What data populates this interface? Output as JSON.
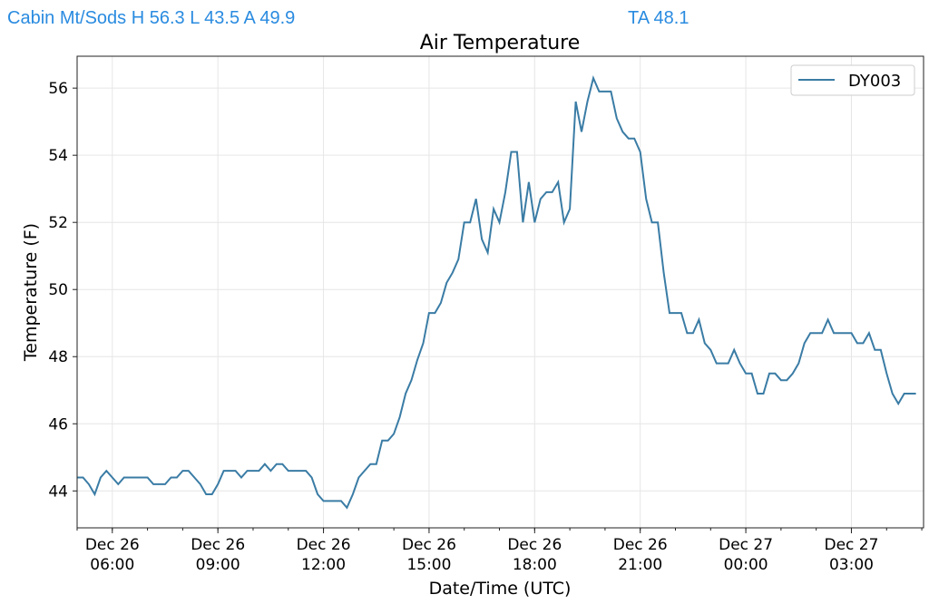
{
  "header": {
    "station": "Cabin Mt/Sods H 56.3 L 43.5 A 49.9",
    "ta": "TA 48.1"
  },
  "chart_data": {
    "type": "line",
    "title": "Air Temperature",
    "xlabel": "Date/Time (UTC)",
    "ylabel": "Temperature (F)",
    "ylim": [
      42.9,
      56.95
    ],
    "xlim_hours": [
      5.0,
      29.05
    ],
    "x_start_hours": 5.0,
    "x_interval_minutes": 10,
    "grid": true,
    "legend": {
      "placement": "top-right",
      "entries": [
        "DY003"
      ]
    },
    "line_color": "#3a7ca5",
    "yticks": [
      44,
      46,
      48,
      50,
      52,
      54,
      56
    ],
    "xticks": [
      {
        "hours": 6,
        "line1": "Dec 26",
        "line2": "06:00"
      },
      {
        "hours": 9,
        "line1": "Dec 26",
        "line2": "09:00"
      },
      {
        "hours": 12,
        "line1": "Dec 26",
        "line2": "12:00"
      },
      {
        "hours": 15,
        "line1": "Dec 26",
        "line2": "15:00"
      },
      {
        "hours": 18,
        "line1": "Dec 26",
        "line2": "18:00"
      },
      {
        "hours": 21,
        "line1": "Dec 26",
        "line2": "21:00"
      },
      {
        "hours": 24,
        "line1": "Dec 27",
        "line2": "00:00"
      },
      {
        "hours": 27,
        "line1": "Dec 27",
        "line2": "03:00"
      }
    ],
    "series": [
      {
        "name": "DY003",
        "values": [
          44.4,
          44.4,
          44.2,
          43.9,
          44.4,
          44.6,
          44.4,
          44.2,
          44.4,
          44.4,
          44.4,
          44.4,
          44.4,
          44.2,
          44.2,
          44.2,
          44.4,
          44.4,
          44.6,
          44.6,
          44.4,
          44.2,
          43.9,
          43.9,
          44.2,
          44.6,
          44.6,
          44.6,
          44.4,
          44.6,
          44.6,
          44.6,
          44.8,
          44.6,
          44.8,
          44.8,
          44.6,
          44.6,
          44.6,
          44.6,
          44.4,
          43.9,
          43.7,
          43.7,
          43.7,
          43.7,
          43.5,
          43.9,
          44.4,
          44.6,
          44.8,
          44.8,
          45.5,
          45.5,
          45.7,
          46.2,
          46.9,
          47.3,
          47.9,
          48.4,
          49.3,
          49.3,
          49.6,
          50.2,
          50.5,
          50.9,
          52.0,
          52.0,
          52.7,
          51.5,
          51.1,
          52.4,
          52.0,
          52.9,
          54.1,
          54.1,
          52.0,
          53.2,
          52.0,
          52.7,
          52.9,
          52.9,
          53.2,
          52.0,
          52.4,
          55.6,
          54.7,
          55.6,
          56.3,
          55.9,
          55.9,
          55.9,
          55.1,
          54.7,
          54.5,
          54.5,
          54.1,
          52.7,
          52.0,
          52.0,
          50.5,
          49.3,
          49.3,
          49.3,
          48.7,
          48.7,
          49.1,
          48.4,
          48.2,
          47.8,
          47.8,
          47.8,
          48.2,
          47.8,
          47.5,
          47.5,
          46.9,
          46.9,
          47.5,
          47.5,
          47.3,
          47.3,
          47.5,
          47.8,
          48.4,
          48.7,
          48.7,
          48.7,
          49.1,
          48.7,
          48.7,
          48.7,
          48.7,
          48.4,
          48.4,
          48.7,
          48.2,
          48.2,
          47.5,
          46.9,
          46.6,
          46.9,
          46.9,
          46.9
        ]
      }
    ]
  }
}
